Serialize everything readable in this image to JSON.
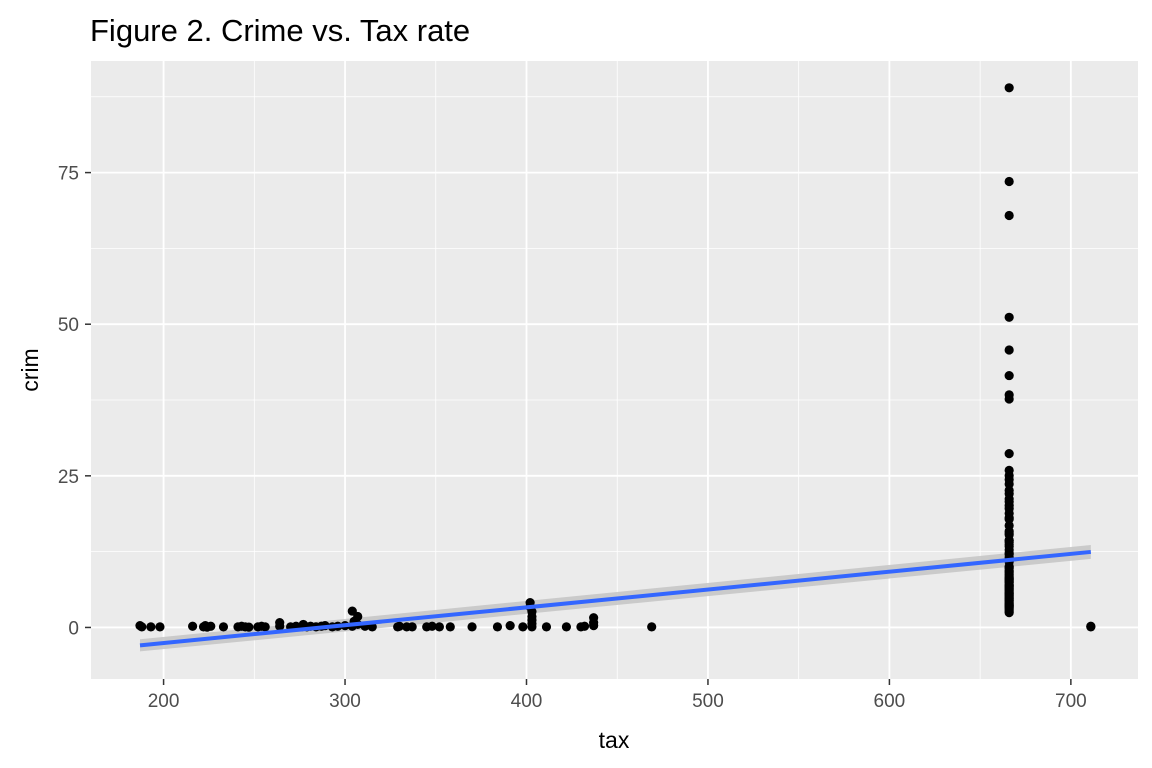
{
  "chart_data": {
    "type": "scatter",
    "title": "Figure 2. Crime vs. Tax rate",
    "xlabel": "tax",
    "ylabel": "crim",
    "xlim": [
      160,
      737
    ],
    "ylim": [
      -8.5,
      93.4
    ],
    "x_ticks": [
      200,
      300,
      400,
      500,
      600,
      700
    ],
    "y_ticks": [
      0,
      25,
      50,
      75
    ],
    "grid": true,
    "legend": "none",
    "colors": {
      "panel": "#ebebeb",
      "grid": "#ffffff",
      "points": "#000000",
      "fit_line": "#3366ff",
      "confidence_band": "#c4c4c4"
    },
    "points": [
      [
        187,
        0.3
      ],
      [
        188,
        0.1
      ],
      [
        193,
        0.1
      ],
      [
        198,
        0.1
      ],
      [
        216,
        0.2
      ],
      [
        222,
        0.1
      ],
      [
        223,
        0.3
      ],
      [
        224,
        0.05
      ],
      [
        226,
        0.2
      ],
      [
        233,
        0.1
      ],
      [
        241,
        0.1
      ],
      [
        243,
        0.2
      ],
      [
        245,
        0.1
      ],
      [
        247,
        0.05
      ],
      [
        252,
        0.1
      ],
      [
        254,
        0.2
      ],
      [
        256,
        0.1
      ],
      [
        264,
        0.8
      ],
      [
        264,
        0.2
      ],
      [
        270,
        0.1
      ],
      [
        273,
        0.2
      ],
      [
        276,
        0.1
      ],
      [
        277,
        0.5
      ],
      [
        279,
        0.1
      ],
      [
        281,
        0.2
      ],
      [
        284,
        0.1
      ],
      [
        287,
        0.2
      ],
      [
        289,
        0.3
      ],
      [
        293,
        0.1
      ],
      [
        296,
        0.2
      ],
      [
        300,
        0.3
      ],
      [
        304,
        2.7
      ],
      [
        304,
        0.2
      ],
      [
        305,
        1.0
      ],
      [
        307,
        1.8
      ],
      [
        307,
        0.5
      ],
      [
        311,
        0.2
      ],
      [
        315,
        0.1
      ],
      [
        329,
        0.1
      ],
      [
        330,
        0.2
      ],
      [
        334,
        0.1
      ],
      [
        337,
        0.1
      ],
      [
        345,
        0.1
      ],
      [
        348,
        0.2
      ],
      [
        352,
        0.1
      ],
      [
        358,
        0.1
      ],
      [
        370,
        0.1
      ],
      [
        384,
        0.1
      ],
      [
        391,
        0.3
      ],
      [
        398,
        0.1
      ],
      [
        402,
        4.1
      ],
      [
        402,
        3.4
      ],
      [
        403,
        2.6
      ],
      [
        403,
        1.8
      ],
      [
        403,
        1.2
      ],
      [
        403,
        0.6
      ],
      [
        403,
        0.1
      ],
      [
        411,
        0.1
      ],
      [
        422,
        0.1
      ],
      [
        430,
        0.1
      ],
      [
        432,
        0.2
      ],
      [
        437,
        1.6
      ],
      [
        437,
        0.8
      ],
      [
        437,
        0.3
      ],
      [
        469,
        0.1
      ],
      [
        711,
        0.2
      ],
      [
        711,
        0.1
      ],
      [
        666,
        88.98
      ],
      [
        666,
        73.53
      ],
      [
        666,
        67.92
      ],
      [
        666,
        51.14
      ],
      [
        666,
        45.75
      ],
      [
        666,
        41.53
      ],
      [
        666,
        38.35
      ],
      [
        666,
        37.66
      ],
      [
        666,
        28.66
      ],
      [
        666,
        25.9
      ],
      [
        666,
        25.05
      ],
      [
        666,
        24.39
      ],
      [
        666,
        23.65
      ],
      [
        666,
        22.6
      ],
      [
        666,
        22.05
      ],
      [
        666,
        21.2
      ],
      [
        666,
        20.72
      ],
      [
        666,
        20.08
      ],
      [
        666,
        19.6
      ],
      [
        666,
        18.81
      ],
      [
        666,
        18.08
      ],
      [
        666,
        17.87
      ],
      [
        666,
        16.81
      ],
      [
        666,
        15.87
      ],
      [
        666,
        15.57
      ],
      [
        666,
        15.29
      ],
      [
        666,
        14.42
      ],
      [
        666,
        14.33
      ],
      [
        666,
        14.05
      ],
      [
        666,
        13.68
      ],
      [
        666,
        13.36
      ],
      [
        666,
        12.8
      ],
      [
        666,
        12.25
      ],
      [
        666,
        12.05
      ],
      [
        666,
        11.58
      ],
      [
        666,
        11.16
      ],
      [
        666,
        11.1
      ],
      [
        666,
        10.83
      ],
      [
        666,
        10.06
      ],
      [
        666,
        9.92
      ],
      [
        666,
        9.72
      ],
      [
        666,
        9.39
      ],
      [
        666,
        9.19
      ],
      [
        666,
        8.98
      ],
      [
        666,
        8.72
      ],
      [
        666,
        8.49
      ],
      [
        666,
        8.25
      ],
      [
        666,
        8.06
      ],
      [
        666,
        7.99
      ],
      [
        666,
        7.84
      ],
      [
        666,
        7.67
      ],
      [
        666,
        7.52
      ],
      [
        666,
        7.37
      ],
      [
        666,
        7.05
      ],
      [
        666,
        6.96
      ],
      [
        666,
        6.8
      ],
      [
        666,
        6.65
      ],
      [
        666,
        6.44
      ],
      [
        666,
        6.29
      ],
      [
        666,
        6.07
      ],
      [
        666,
        5.87
      ],
      [
        666,
        5.69
      ],
      [
        666,
        5.58
      ],
      [
        666,
        5.44
      ],
      [
        666,
        5.29
      ],
      [
        666,
        5.09
      ],
      [
        666,
        4.87
      ],
      [
        666,
        4.75
      ],
      [
        666,
        4.54
      ],
      [
        666,
        4.42
      ],
      [
        666,
        4.22
      ],
      [
        666,
        4.03
      ],
      [
        666,
        3.85
      ],
      [
        666,
        3.68
      ],
      [
        666,
        3.57
      ],
      [
        666,
        3.47
      ],
      [
        666,
        3.32
      ],
      [
        666,
        3.16
      ],
      [
        666,
        2.92
      ],
      [
        666,
        2.72
      ],
      [
        666,
        2.45
      ]
    ],
    "fit": {
      "x": [
        187,
        711
      ],
      "y": [
        -2.95,
        12.45
      ],
      "band_lower": [
        -3.95,
        11.3
      ],
      "band_upper": [
        -1.95,
        13.6
      ]
    }
  }
}
